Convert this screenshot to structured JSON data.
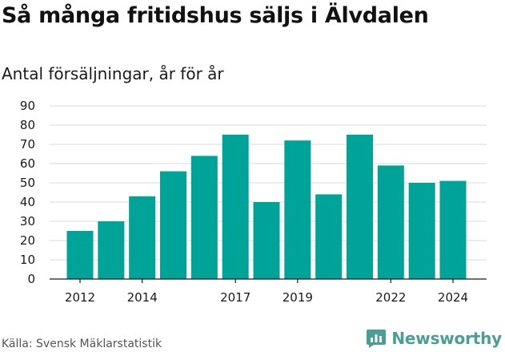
{
  "title": "Så många fritidshus säljs i Älvdalen",
  "subtitle": "Antal försäljningar, år för år",
  "source": "Källa: Svensk Mäklarstatistik",
  "brand": {
    "name": "Newsworthy",
    "icon": "newsworthy-logo-icon",
    "color": "#4a9e94"
  },
  "chart_data": {
    "type": "bar",
    "title": "Så många fritidshus säljs i Älvdalen",
    "subtitle": "Antal försäljningar, år för år",
    "categories": [
      2012,
      2013,
      2014,
      2015,
      2016,
      2017,
      2018,
      2019,
      2020,
      2021,
      2022,
      2023,
      2024
    ],
    "values": [
      25,
      30,
      43,
      56,
      64,
      75,
      40,
      72,
      44,
      75,
      59,
      50,
      51
    ],
    "x_tick_labels": [
      2012,
      2014,
      2017,
      2019,
      2022,
      2024
    ],
    "y_ticks": [
      0,
      10,
      20,
      30,
      40,
      50,
      60,
      70,
      80,
      90
    ],
    "ylim": [
      0,
      90
    ],
    "grid": true,
    "bar_color": "#00a398",
    "grid_color": "#d9d9d9"
  }
}
